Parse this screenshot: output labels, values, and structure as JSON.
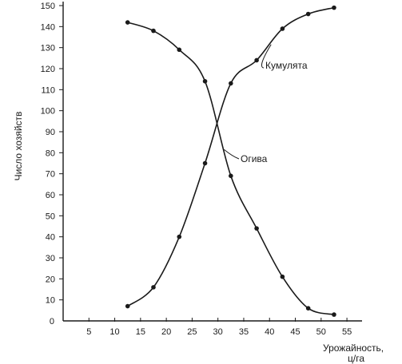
{
  "chart_data": {
    "type": "line",
    "ylabel": "Число хозяйств",
    "xlabel": [
      "Урожайность,",
      "ц/га"
    ],
    "x_ticks": [
      "5",
      "10",
      "15",
      "20",
      "25",
      "30",
      "35",
      "40",
      "45",
      "50",
      "55"
    ],
    "y_ticks": [
      "0",
      "10",
      "20",
      "30",
      "40",
      "50",
      "60",
      "70",
      "80",
      "90",
      "100",
      "110",
      "120",
      "130",
      "140",
      "150"
    ],
    "xlim": [
      0,
      57
    ],
    "ylim": [
      0,
      150
    ],
    "grid": false,
    "series": [
      {
        "name": "Кумулята",
        "x": [
          12.5,
          17.5,
          22.5,
          27.5,
          32.5,
          37.5,
          42.5,
          47.5,
          52.5
        ],
        "y": [
          7,
          16,
          40,
          75,
          113,
          124,
          139,
          146,
          149
        ]
      },
      {
        "name": "Огива",
        "x": [
          12.5,
          17.5,
          22.5,
          27.5,
          32.5,
          37.5,
          42.5,
          47.5,
          52.5
        ],
        "y": [
          142,
          138,
          129,
          114,
          69,
          44,
          21,
          6,
          3
        ]
      }
    ]
  }
}
